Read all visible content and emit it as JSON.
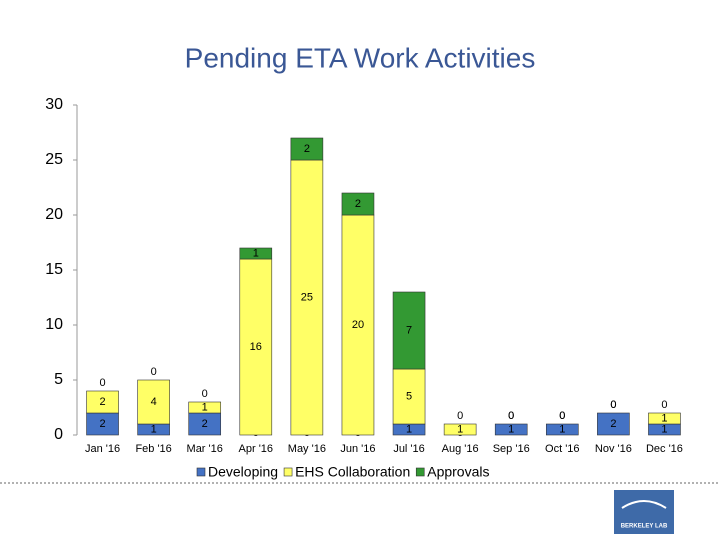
{
  "chart_data": {
    "type": "bar",
    "stacked": true,
    "title": "Pending ETA Work Activities",
    "categories": [
      "Jan '16",
      "Feb '16",
      "Mar '16",
      "Apr '16",
      "May '16",
      "Jun '16",
      "Jul '16",
      "Aug '16",
      "Sep '16",
      "Oct '16",
      "Nov '16",
      "Dec '16"
    ],
    "series": [
      {
        "name": "Developing",
        "color": "#4472c4",
        "values": [
          2,
          1,
          2,
          0,
          0,
          0,
          1,
          0,
          1,
          1,
          2,
          1
        ]
      },
      {
        "name": "EHS Collaboration",
        "color": "#ffff66",
        "values": [
          2,
          4,
          1,
          16,
          25,
          20,
          5,
          1,
          0,
          0,
          0,
          1
        ]
      },
      {
        "name": "Approvals",
        "color": "#339933",
        "values": [
          0,
          0,
          0,
          1,
          2,
          2,
          7,
          0,
          0,
          0,
          0,
          0
        ]
      }
    ],
    "ylim": [
      0,
      30
    ],
    "yticks": [
      0,
      5,
      10,
      15,
      20,
      25,
      30
    ],
    "grid": false,
    "legend": "bottom",
    "logo": "BERKELEY LAB"
  }
}
